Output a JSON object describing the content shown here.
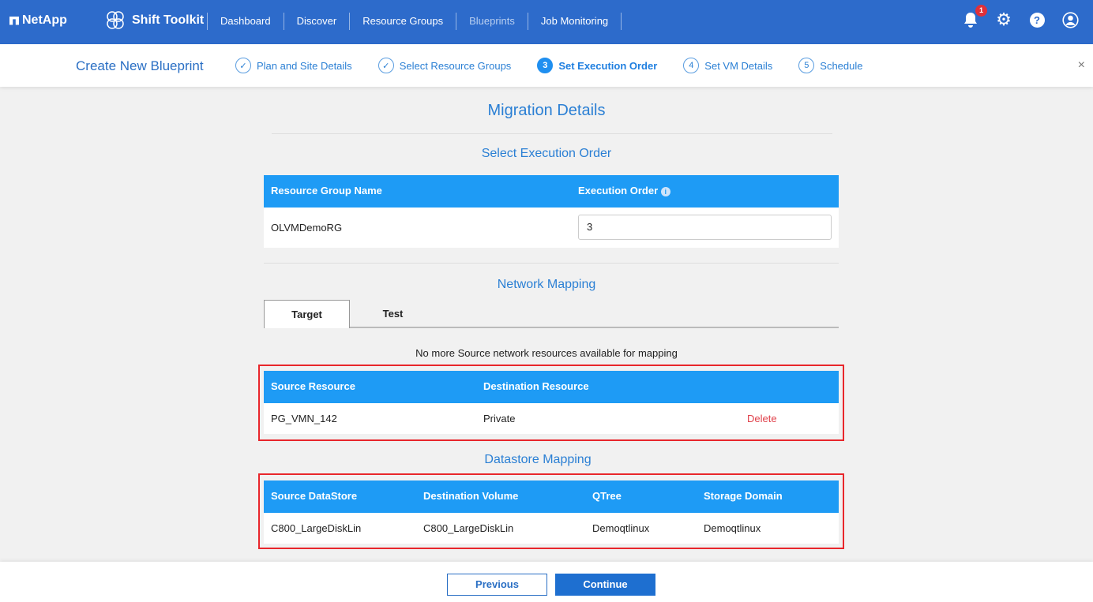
{
  "header": {
    "logo": "NetApp",
    "brand": "Shift Toolkit",
    "nav": [
      "Dashboard",
      "Discover",
      "Resource Groups",
      "Blueprints",
      "Job Monitoring"
    ],
    "notification_count": "1"
  },
  "wizard": {
    "title": "Create New Blueprint",
    "steps": [
      {
        "num": "✓",
        "label": "Plan and Site Details"
      },
      {
        "num": "✓",
        "label": "Select Resource Groups"
      },
      {
        "num": "3",
        "label": "Set Execution Order"
      },
      {
        "num": "4",
        "label": "Set VM Details"
      },
      {
        "num": "5",
        "label": "Schedule"
      }
    ],
    "close": "×"
  },
  "main": {
    "heading": "Migration Details",
    "execution": {
      "heading": "Select Execution Order",
      "col1": "Resource Group Name",
      "col2": "Execution Order",
      "row": {
        "name": "OLVMDemoRG",
        "order": "3"
      }
    },
    "network": {
      "heading": "Network Mapping",
      "tabs": [
        "Target",
        "Test"
      ],
      "message": "No more Source network resources available for mapping",
      "cols": [
        "Source Resource",
        "Destination Resource"
      ],
      "row": {
        "source": "PG_VMN_142",
        "dest": "Private",
        "action": "Delete"
      }
    },
    "datastore": {
      "heading": "Datastore Mapping",
      "cols": [
        "Source DataStore",
        "Destination Volume",
        "QTree",
        "Storage Domain"
      ],
      "row": [
        "C800_LargeDiskLin",
        "C800_LargeDiskLin",
        "Demoqtlinux",
        "Demoqtlinux"
      ]
    }
  },
  "footer": {
    "previous": "Previous",
    "continue": "Continue"
  }
}
